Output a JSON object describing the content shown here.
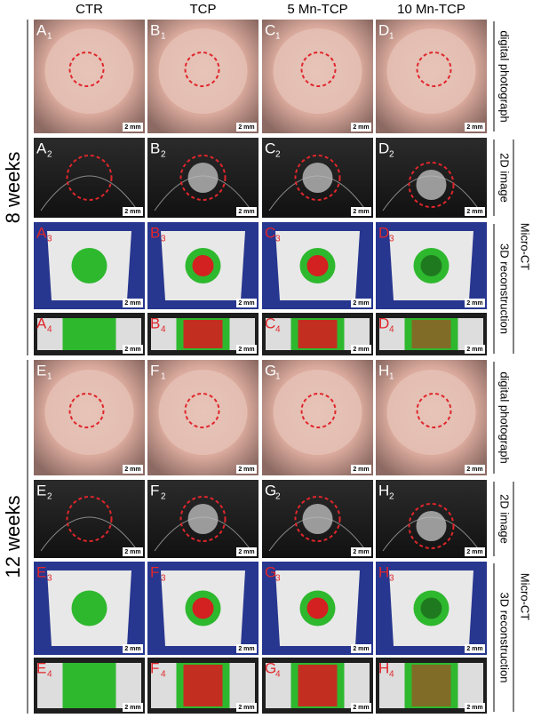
{
  "columns": [
    "CTR",
    "TCP",
    "5 Mn-TCP",
    "10 Mn-TCP"
  ],
  "groups": [
    {
      "label": "8 weeks",
      "letters": [
        "A",
        "B",
        "C",
        "D"
      ]
    },
    {
      "label": "12 weeks",
      "letters": [
        "E",
        "F",
        "G",
        "H"
      ]
    }
  ],
  "subscripts": [
    "1",
    "2",
    "3",
    "4"
  ],
  "row_labels": [
    "digital photograph",
    "2D image",
    "3D reconstruction"
  ],
  "micro_ct": "Micro-CT",
  "scale_bar": "2 mm"
}
